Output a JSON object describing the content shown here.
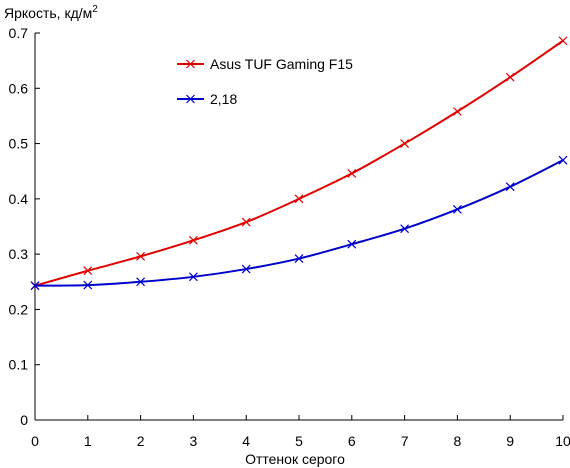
{
  "chart_data": {
    "type": "line",
    "title": "",
    "ylabel": "Яркость, кд/м",
    "ylabel_sup": "2",
    "xlabel": "Оттенок серого",
    "xlim": [
      0,
      10
    ],
    "ylim": [
      0,
      0.7
    ],
    "xticks": [
      "0",
      "1",
      "2",
      "3",
      "4",
      "5",
      "6",
      "7",
      "8",
      "9",
      "10"
    ],
    "yticks": [
      "0",
      "0.1",
      "0.2",
      "0.3",
      "0.4",
      "0.5",
      "0.6",
      "0.7"
    ],
    "grid": false,
    "legend_position": "top-center",
    "x": [
      0,
      1,
      2,
      3,
      4,
      5,
      6,
      7,
      8,
      9,
      10
    ],
    "series": [
      {
        "name": "Asus TUF Gaming F15",
        "color": "#e00000",
        "values": [
          0.243,
          0.27,
          0.296,
          0.325,
          0.358,
          0.4,
          0.446,
          0.5,
          0.558,
          0.62,
          0.686
        ]
      },
      {
        "name": "2,18",
        "color": "#0000cc",
        "values": [
          0.243,
          0.244,
          0.25,
          0.259,
          0.273,
          0.292,
          0.318,
          0.346,
          0.381,
          0.422,
          0.47
        ]
      }
    ]
  }
}
